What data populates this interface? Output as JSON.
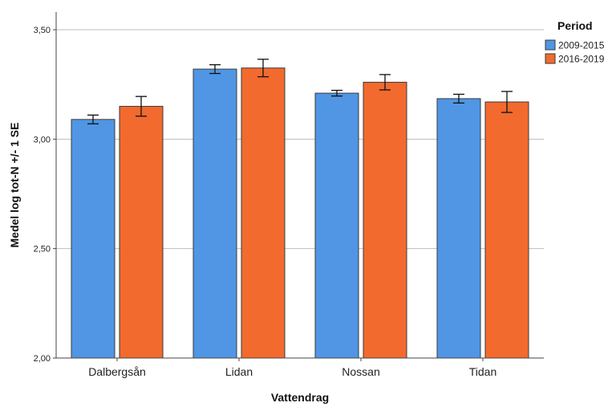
{
  "chart_data": {
    "type": "bar",
    "title": "",
    "xlabel": "Vattendrag",
    "ylabel": "Medel log tot-N +/- 1 SE",
    "ylim": [
      2.0,
      3.5
    ],
    "yticks": [
      2.0,
      2.5,
      3.0,
      3.5
    ],
    "ytick_labels": [
      "2,00",
      "2,50",
      "3,00",
      "3,50"
    ],
    "grid": true,
    "categories": [
      "Dalbergsån",
      "Lidan",
      "Nossan",
      "Tidan"
    ],
    "legend": {
      "title": "Period",
      "position": "top-right"
    },
    "series": [
      {
        "name": "2009-2015",
        "color": "#5096e4",
        "values": [
          3.09,
          3.32,
          3.21,
          3.185
        ],
        "error": [
          0.02,
          0.02,
          0.013,
          0.02
        ]
      },
      {
        "name": "2016-2019",
        "color": "#f26a2e",
        "values": [
          3.15,
          3.325,
          3.26,
          3.17
        ],
        "error": [
          0.045,
          0.04,
          0.035,
          0.048
        ]
      }
    ]
  }
}
